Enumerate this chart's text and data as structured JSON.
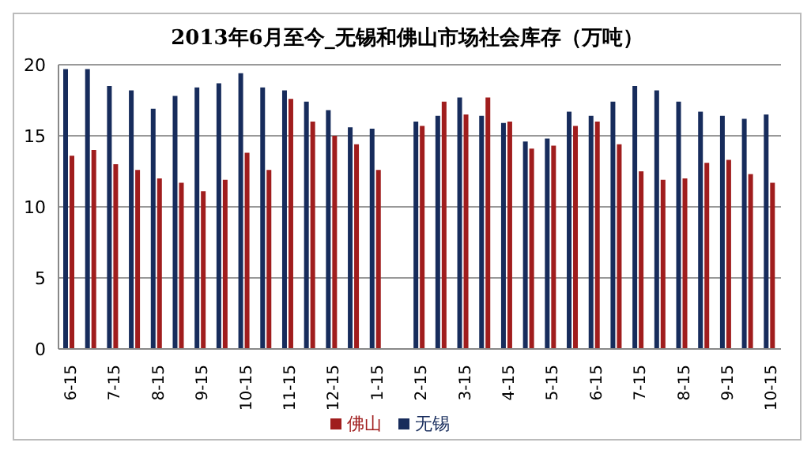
{
  "chart_data": {
    "type": "bar",
    "title": "2013年6月至今_无锡和佛山市场社会库存（万吨）",
    "categories": [
      "6-15",
      null,
      "7-15",
      null,
      "8-15",
      null,
      "9-15",
      null,
      "10-15",
      null,
      "11-15",
      null,
      "12-15",
      null,
      "1-15",
      null,
      "2-15",
      null,
      "3-15",
      null,
      "4-15",
      null,
      "5-15",
      null,
      "6-15",
      null,
      "7-15",
      null,
      "8-15",
      null,
      "9-15",
      null,
      "10-15"
    ],
    "series": [
      {
        "name": "无锡",
        "color": "#172c5c",
        "values": [
          19.7,
          19.7,
          18.5,
          18.2,
          16.9,
          17.8,
          18.4,
          18.7,
          19.4,
          18.4,
          18.2,
          17.4,
          16.8,
          15.6,
          15.5,
          null,
          16.0,
          16.4,
          17.7,
          16.4,
          15.9,
          14.6,
          14.8,
          16.7,
          16.4,
          17.4,
          18.5,
          18.2,
          17.4,
          16.7,
          16.4,
          16.2,
          16.5
        ]
      },
      {
        "name": "佛山",
        "color": "#a01d1d",
        "values": [
          13.6,
          14.0,
          13.0,
          12.6,
          12.0,
          11.7,
          11.1,
          11.9,
          13.8,
          12.6,
          17.6,
          16.0,
          15.0,
          14.4,
          12.6,
          null,
          15.7,
          17.4,
          16.5,
          17.7,
          16.0,
          14.1,
          14.3,
          15.7,
          16.0,
          14.4,
          12.5,
          11.9,
          12.0,
          13.1,
          13.3,
          12.3,
          11.7
        ]
      }
    ],
    "ylim": [
      0,
      20
    ],
    "yticks": [
      0,
      5,
      10,
      15,
      20
    ],
    "grid": "y",
    "legend": "bottom"
  }
}
